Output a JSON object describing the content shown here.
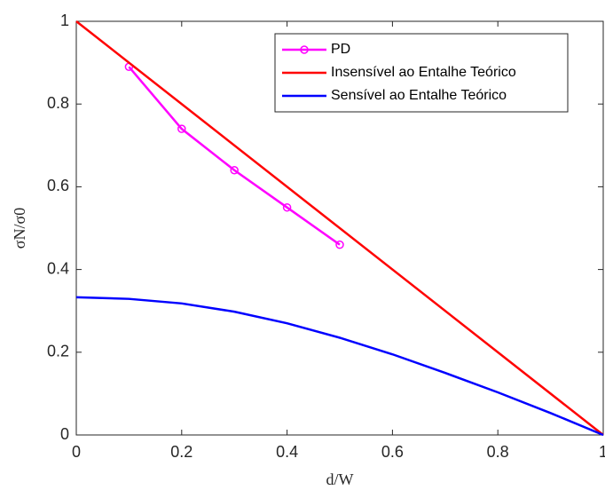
{
  "chart_data": {
    "type": "line",
    "xlabel": "d/W",
    "ylabel": "σN/σ0",
    "xlim": [
      0,
      1
    ],
    "ylim": [
      0,
      1
    ],
    "xticks": [
      0,
      0.2,
      0.4,
      0.6,
      0.8,
      1
    ],
    "yticks": [
      0,
      0.2,
      0.4,
      0.6,
      0.8,
      1
    ],
    "grid": false,
    "legend": "upper right",
    "series": [
      {
        "name": "PD",
        "color": "#ff00ff",
        "marker": "circle",
        "x": [
          0.1,
          0.2,
          0.3,
          0.4,
          0.5
        ],
        "values": [
          0.89,
          0.74,
          0.64,
          0.55,
          0.46
        ]
      },
      {
        "name": "Insensível ao Entalhe Teórico",
        "color": "#ff0000",
        "x": [
          0,
          1
        ],
        "values": [
          1,
          0
        ]
      },
      {
        "name": "Sensível ao Entalhe Teórico",
        "color": "#0000ff",
        "x": [
          0,
          0.1,
          0.2,
          0.3,
          0.4,
          0.5,
          0.6,
          0.7,
          0.8,
          0.9,
          1
        ],
        "values": [
          0.333,
          0.329,
          0.318,
          0.298,
          0.27,
          0.235,
          0.195,
          0.15,
          0.103,
          0.053,
          0
        ]
      }
    ]
  }
}
